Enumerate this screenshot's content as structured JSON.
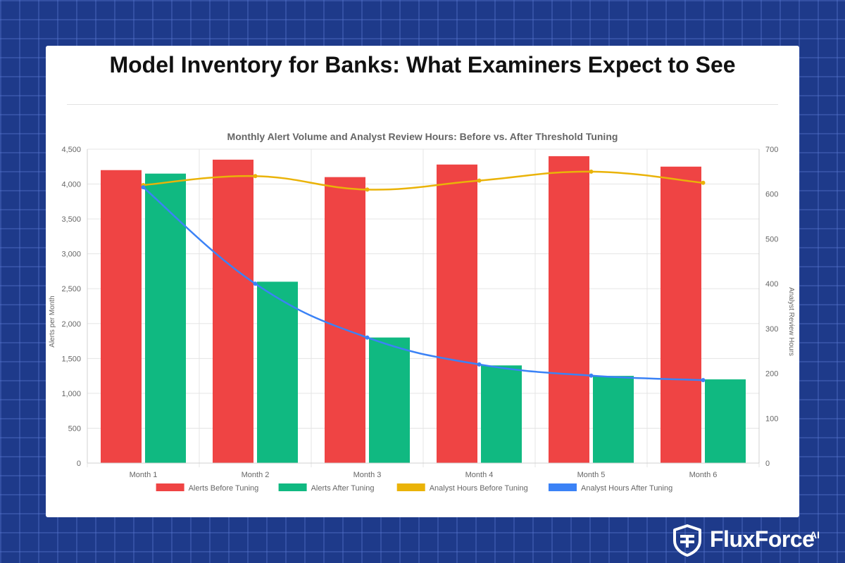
{
  "page": {
    "title": "Model Inventory for Banks: What Examiners Expect to See"
  },
  "brand": {
    "name": "FluxForce",
    "suffix": "AI",
    "logo_icon": "shield-icon"
  },
  "colors": {
    "background": "#1e3a8a",
    "alerts_before": "#ef4444",
    "alerts_after": "#10b981",
    "hours_before": "#eab308",
    "hours_after": "#3b82f6"
  },
  "chart_data": {
    "type": "bar",
    "title": "Monthly Alert Volume and Analyst Review Hours: Before vs. After Threshold Tuning",
    "categories": [
      "Month 1",
      "Month 2",
      "Month 3",
      "Month 4",
      "Month 5",
      "Month 6"
    ],
    "series": [
      {
        "name": "Alerts Before Tuning",
        "type": "bar",
        "axis": "left",
        "color": "#ef4444",
        "values": [
          4200,
          4350,
          4100,
          4280,
          4400,
          4250
        ]
      },
      {
        "name": "Alerts After Tuning",
        "type": "bar",
        "axis": "left",
        "color": "#10b981",
        "values": [
          4150,
          2600,
          1800,
          1400,
          1250,
          1200
        ]
      },
      {
        "name": "Analyst Hours Before Tuning",
        "type": "line",
        "axis": "right",
        "color": "#eab308",
        "values": [
          620,
          640,
          610,
          630,
          650,
          625
        ]
      },
      {
        "name": "Analyst Hours After Tuning",
        "type": "line",
        "axis": "right",
        "color": "#3b82f6",
        "values": [
          615,
          400,
          280,
          220,
          195,
          185
        ]
      }
    ],
    "ylabel": "Alerts per Month",
    "y2label": "Analyst Review Hours",
    "ylim": [
      0,
      4500
    ],
    "y2lim": [
      0,
      700
    ],
    "yticks": [
      "0",
      "500",
      "1,000",
      "1,500",
      "2,000",
      "2,500",
      "3,000",
      "3,500",
      "4,000",
      "4,500"
    ],
    "y2ticks": [
      "0",
      "100",
      "200",
      "300",
      "400",
      "500",
      "600",
      "700"
    ],
    "grid": true,
    "legend_position": "bottom"
  }
}
